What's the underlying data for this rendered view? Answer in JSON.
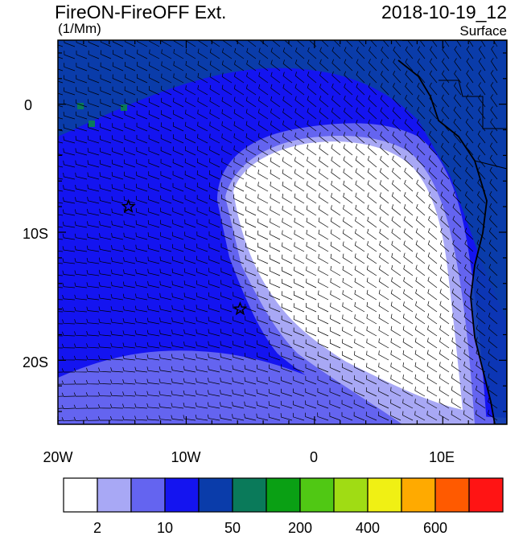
{
  "header": {
    "title": "FireON-FireOFF Ext.",
    "units": "(1/Mm)",
    "datetime": "2018-10-19_12",
    "level": "Surface"
  },
  "axes": {
    "x_ticks": [
      "20W",
      "10W",
      "0",
      "10E"
    ],
    "y_ticks": [
      "0",
      "10S",
      "20S"
    ]
  },
  "colorbar": {
    "colors": [
      "#ffffff",
      "#a8a8f5",
      "#6464f0",
      "#1414f0",
      "#0a3caa",
      "#0a7a5a",
      "#0aa014",
      "#50c814",
      "#a0dc14",
      "#f0f014",
      "#ffaa00",
      "#ff5a00",
      "#ff1414"
    ],
    "labels": [
      "2",
      "10",
      "50",
      "200",
      "400",
      "600"
    ]
  },
  "markers": [
    {
      "name": "station-star-1",
      "lon": -14.5,
      "lat": -8.0
    },
    {
      "name": "station-star-2",
      "lon": -5.8,
      "lat": -16.0
    }
  ]
}
